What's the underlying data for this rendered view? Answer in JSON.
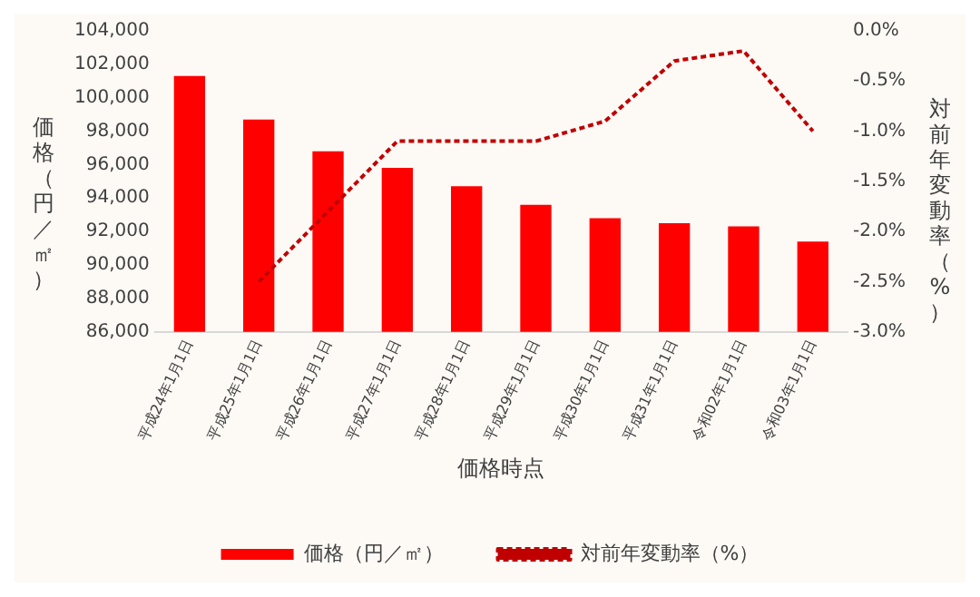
{
  "chart_data": {
    "type": "bar",
    "categories": [
      "平成24年1月1日",
      "平成25年1月1日",
      "平成26年1月1日",
      "平成27年1月1日",
      "平成28年1月1日",
      "平成29年1月1日",
      "平成30年1月1日",
      "平成31年1月1日",
      "令和02年1月1日",
      "令和03年1月1日"
    ],
    "xlabel": "価格時点",
    "ylabel": "価格（円／㎡）",
    "y2label": "対前年変動率（%）",
    "series": [
      {
        "name": "価格（円／㎡）",
        "color": "#ff0000",
        "values": [
          101300,
          98700,
          96800,
          95800,
          94700,
          93600,
          92800,
          92500,
          92300,
          91400
        ]
      },
      {
        "name": "対前年変動率（%）",
        "type": "line",
        "axis": "y2",
        "color": "#c00000",
        "line_style": "dashed",
        "values": [
          null,
          -2.5,
          -1.8,
          -1.1,
          -1.1,
          -1.1,
          -0.9,
          -0.3,
          -0.2,
          -1.0
        ]
      }
    ],
    "ylim": [
      86000,
      104000
    ],
    "yticks": [
      {
        "value": 86000,
        "label": "86,000"
      },
      {
        "value": 88000,
        "label": "88,000"
      },
      {
        "value": 90000,
        "label": "90,000"
      },
      {
        "value": 92000,
        "label": "92,000"
      },
      {
        "value": 94000,
        "label": "94,000"
      },
      {
        "value": 96000,
        "label": "96,000"
      },
      {
        "value": 98000,
        "label": "98,000"
      },
      {
        "value": 100000,
        "label": "100,000"
      },
      {
        "value": 102000,
        "label": "102,000"
      },
      {
        "value": 104000,
        "label": "104,000"
      }
    ],
    "y2lim": [
      -3.0,
      0.0
    ],
    "y2ticks": [
      {
        "value": -3.0,
        "label": "-3.0%"
      },
      {
        "value": -2.5,
        "label": "-2.5%"
      },
      {
        "value": -2.0,
        "label": "-2.0%"
      },
      {
        "value": -1.5,
        "label": "-1.5%"
      },
      {
        "value": -1.0,
        "label": "-1.0%"
      },
      {
        "value": -0.5,
        "label": "-0.5%"
      },
      {
        "value": 0.0,
        "label": "0.0%"
      }
    ],
    "legend": "bottom",
    "grid": false,
    "marker": "none"
  }
}
